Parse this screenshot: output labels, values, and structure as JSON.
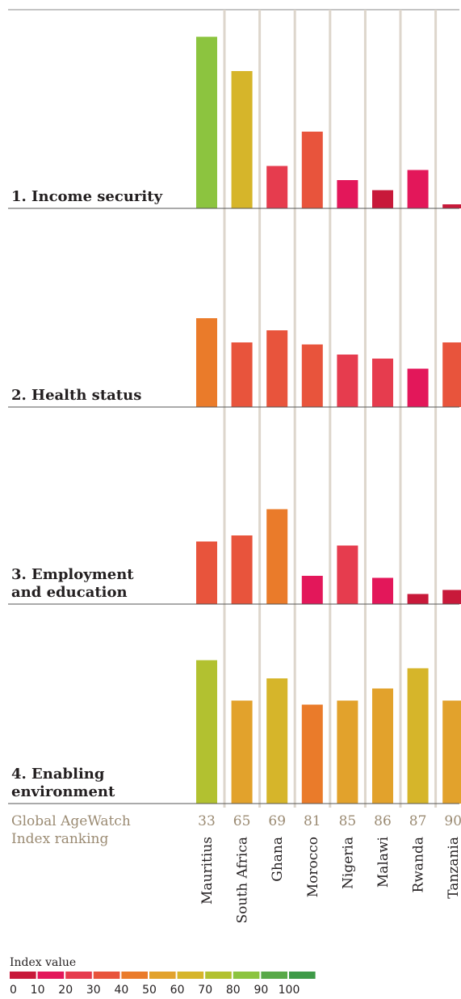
{
  "chart_data": {
    "type": "bar",
    "title": "",
    "categories": [
      "Mauritius",
      "South Africa",
      "Ghana",
      "Morocco",
      "Nigeria",
      "Malawi",
      "Rwanda",
      "Tanzania"
    ],
    "rankings": [
      "33",
      "65",
      "69",
      "81",
      "85",
      "86",
      "87",
      "90"
    ],
    "ranking_label": [
      "Global AgeWatch",
      "Index ranking"
    ],
    "ylim": [
      0,
      100
    ],
    "grid": false,
    "panels": [
      {
        "name": "1. Income security",
        "title_lines": [
          "1. Income security"
        ],
        "values": [
          85,
          68,
          21,
          38,
          14,
          9,
          19,
          2
        ]
      },
      {
        "name": "2. Health status",
        "title_lines": [
          "2. Health status"
        ],
        "values": [
          44,
          32,
          38,
          31,
          26,
          24,
          19,
          32
        ]
      },
      {
        "name": "3. Employment and education",
        "title_lines": [
          "3. Employment",
          "and education"
        ],
        "values": [
          31,
          34,
          47,
          14,
          29,
          13,
          5,
          7
        ]
      },
      {
        "name": "4. Enabling environment",
        "title_lines": [
          "4. Enabling",
          "environment"
        ],
        "values": [
          71,
          51,
          62,
          49,
          51,
          57,
          67,
          51
        ]
      }
    ],
    "legend": {
      "title": "Index value",
      "ticks": [
        "0",
        "10",
        "20",
        "30",
        "40",
        "50",
        "60",
        "70",
        "80",
        "90",
        "100"
      ],
      "colors": [
        "#c8193a",
        "#e3175a",
        "#e63c4e",
        "#e8543c",
        "#ea7b2a",
        "#e2a22c",
        "#d6b52a",
        "#b2c130",
        "#8cc43f",
        "#58a948",
        "#3e9a48"
      ]
    }
  }
}
